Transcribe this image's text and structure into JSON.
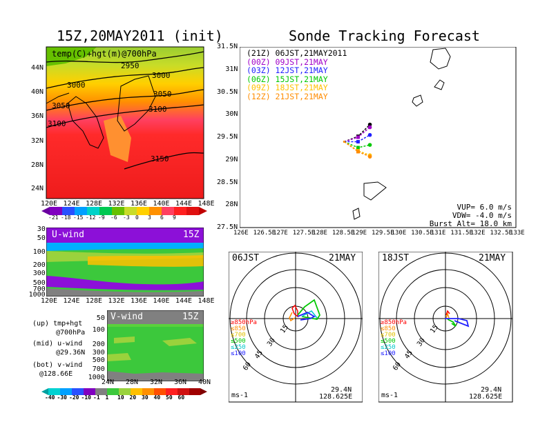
{
  "left_title": "15Z,20MAY2011 (init)",
  "right_title": "Sonde Tracking Forecast",
  "map_panel": {
    "label": "temp(C)+hgt(m)@700hPa",
    "contour_labels": [
      "2950",
      "3000",
      "3000",
      "3050",
      "3050",
      "3100",
      "3100",
      "3150"
    ],
    "lat_ticks": [
      "44N",
      "40N",
      "36N",
      "32N",
      "28N",
      "24N"
    ],
    "lon_ticks": [
      "120E",
      "124E",
      "128E",
      "132E",
      "136E",
      "140E",
      "144E",
      "148E"
    ],
    "colorbar_labels": [
      "-21",
      "-18",
      "-15",
      "-12",
      "-9",
      "-6",
      "-3",
      "0",
      "3",
      "6",
      "9"
    ]
  },
  "uwind_panel": {
    "label": "U-wind",
    "time": "15Z",
    "p_ticks": [
      "30",
      "50",
      "100",
      "200",
      "300",
      "500",
      "700",
      "1000"
    ],
    "lon_ticks": [
      "120E",
      "124E",
      "128E",
      "132E",
      "136E",
      "140E",
      "144E",
      "148E"
    ]
  },
  "vwind_panel": {
    "label": "V-wind",
    "time": "15Z",
    "p_ticks": [
      "50",
      "100",
      "200",
      "300",
      "500",
      "700",
      "1000"
    ],
    "lat_ticks": [
      "24N",
      "28N",
      "32N",
      "36N",
      "40N"
    ],
    "colorbar_labels": [
      "-40",
      "-30",
      "-20",
      "-10",
      "-1",
      "1",
      "10",
      "20",
      "30",
      "40",
      "50",
      "60"
    ]
  },
  "notes": [
    {
      "a": "(up) tmp+hgt",
      "b": "@700hPa"
    },
    {
      "a": "(mid) u-wind",
      "b": "@29.36N"
    },
    {
      "a": "(bot) v-wind",
      "b": "@128.66E"
    }
  ],
  "track_panel": {
    "legend": [
      {
        "text": "(21Z) 06JST,21MAY2011",
        "color": "#000000"
      },
      {
        "text": "(00Z) 09JST,21MAY",
        "color": "#a000c8"
      },
      {
        "text": "(03Z) 12JST,21MAY",
        "color": "#2020ff"
      },
      {
        "text": "(06Z) 15JST,21MAY",
        "color": "#00c800"
      },
      {
        "text": "(09Z) 18JST,21MAY",
        "color": "#ffc000"
      },
      {
        "text": "(12Z) 21JST,21MAY",
        "color": "#ff8c00"
      }
    ],
    "lat_ticks": [
      "31.5N",
      "31N",
      "30.5N",
      "30N",
      "29.5N",
      "29N",
      "28.5N",
      "28N",
      "27.5N"
    ],
    "lon_ticks": [
      "126E",
      "126.5E",
      "127E",
      "127.5E",
      "128E",
      "128.5E",
      "129E",
      "129.5E",
      "130E",
      "130.5E",
      "131E",
      "131.5E",
      "132E",
      "132.5E",
      "133E"
    ],
    "params": [
      "VUP= 6.0 m/s",
      "VDW= -4.0 m/s",
      "Burst Alt= 18.0 km"
    ]
  },
  "hodo_left": {
    "time": "06JST",
    "date": "21MAY",
    "ring_labels": [
      "15",
      "30",
      "45",
      "60"
    ],
    "levels": [
      {
        "text": "≥850hPa",
        "color": "#ff0000"
      },
      {
        "text": "≤850",
        "color": "#ff8c00"
      },
      {
        "text": "≤700",
        "color": "#e0c000"
      },
      {
        "text": "≤500",
        "color": "#00c800"
      },
      {
        "text": "≤250",
        "color": "#00c8c8"
      },
      {
        "text": "≤100",
        "color": "#2020ff"
      }
    ],
    "unit": "ms-1",
    "lat": "29.4N",
    "lon": "128.625E"
  },
  "hodo_right": {
    "time": "18JST",
    "date": "21MAY",
    "ring_labels": [
      "15",
      "30",
      "45",
      "60"
    ],
    "levels": [
      {
        "text": "≥850hPa",
        "color": "#ff0000"
      },
      {
        "text": "≤850",
        "color": "#ff8c00"
      },
      {
        "text": "≤700",
        "color": "#e0c000"
      },
      {
        "text": "≤500",
        "color": "#00c800"
      },
      {
        "text": "≤250",
        "color": "#00c8c8"
      },
      {
        "text": "≤100",
        "color": "#2020ff"
      }
    ],
    "unit": "ms-1",
    "lat": "29.4N",
    "lon": "128.625E"
  },
  "chart_data": {
    "type": "scatter",
    "xlim": [
      126,
      133
    ],
    "ylim": [
      27.5,
      31.5
    ],
    "series": [
      {
        "name": "(21Z) 06JST,21MAY2011",
        "color": "#000000",
        "x": [
          128.65,
          129.0,
          129.3
        ],
        "y": [
          29.4,
          29.52,
          29.78
        ]
      },
      {
        "name": "(00Z) 09JST,21MAY",
        "color": "#a000c8",
        "x": [
          128.65,
          129.0,
          129.3
        ],
        "y": [
          29.4,
          29.5,
          29.72
        ]
      },
      {
        "name": "(03Z) 12JST,21MAY",
        "color": "#2020ff",
        "x": [
          128.65,
          129.0,
          129.3
        ],
        "y": [
          29.4,
          29.4,
          29.55
        ]
      },
      {
        "name": "(06Z) 15JST,21MAY",
        "color": "#00c800",
        "x": [
          128.65,
          129.0,
          129.3
        ],
        "y": [
          29.4,
          29.27,
          29.33
        ]
      },
      {
        "name": "(09Z) 18JST,21MAY",
        "color": "#ffc000",
        "x": [
          128.65,
          129.0,
          129.3
        ],
        "y": [
          29.4,
          29.2,
          29.1
        ]
      },
      {
        "name": "(12Z) 21JST,21MAY",
        "color": "#ff8c00",
        "x": [
          128.65,
          129.0,
          129.3
        ],
        "y": [
          29.4,
          29.18,
          29.07
        ]
      }
    ]
  }
}
